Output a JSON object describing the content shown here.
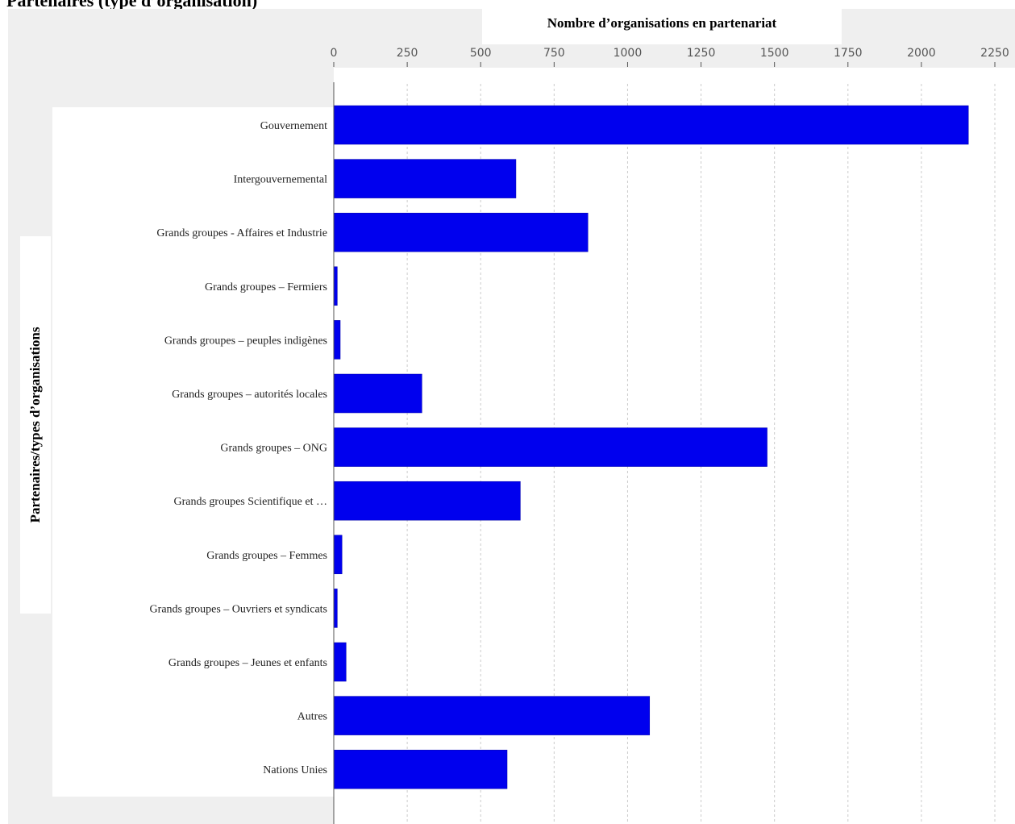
{
  "page": {
    "title": "Partenaires (type d’organisation)"
  },
  "colors": {
    "bar": "#0000ee",
    "background": "#efefef",
    "grid": "#cccccc",
    "axis": "#555555"
  },
  "chart_data": {
    "type": "bar",
    "orientation": "horizontal",
    "title": "",
    "xlabel": "Nombre d’organisations en partenariat",
    "ylabel": "Partenaires/types d’organisations",
    "xlim": [
      0,
      2250
    ],
    "ticks": [
      0,
      250,
      500,
      750,
      1000,
      1250,
      1500,
      1750,
      2000,
      2250
    ],
    "tick_labels": [
      "0",
      "250",
      "500",
      "750",
      "1000",
      "1250",
      "1500",
      "1750",
      "2000",
      "2250"
    ],
    "grid": true,
    "legend": "none",
    "categories": [
      "Gouvernement",
      "Intergouvernemental",
      "Grands groupes - Affaires et Industrie",
      "Grands groupes – Fermiers",
      "Grands groupes – peuples indigènes",
      "Grands groupes – autorités locales",
      "Grands groupes – ONG",
      "Grands groupes Scientifique et …",
      "Grands groupes – Femmes",
      "Grands groupes – Ouvriers et syndicats",
      "Grands groupes – Jeunes et enfants",
      "Autres",
      "Nations Unies"
    ],
    "values": [
      2160,
      620,
      865,
      12,
      22,
      300,
      1475,
      635,
      28,
      12,
      42,
      1075,
      590
    ]
  }
}
